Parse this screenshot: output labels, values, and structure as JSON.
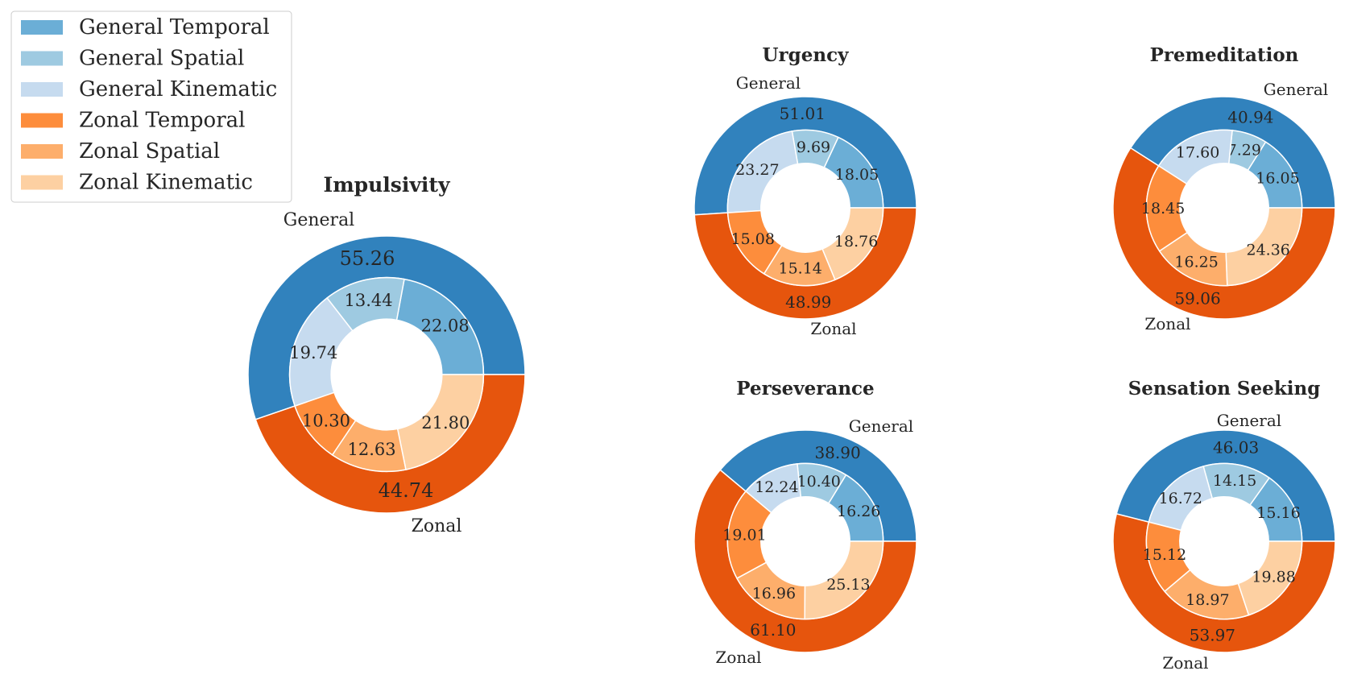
{
  "legend": {
    "entries": [
      {
        "label": "General Temporal",
        "color": "#6baed6"
      },
      {
        "label": "General Spatial",
        "color": "#9ecae1"
      },
      {
        "label": "General Kinematic",
        "color": "#c6dbef"
      },
      {
        "label": "Zonal Temporal",
        "color": "#fd8d3c"
      },
      {
        "label": "Zonal Spatial",
        "color": "#fdae6b"
      },
      {
        "label": "Zonal Kinematic",
        "color": "#fdd0a2"
      }
    ]
  },
  "colors": {
    "general_outer": "#3182bd",
    "zonal_outer": "#e6550d",
    "wedge_edge": "#ffffff"
  },
  "outer_labels": {
    "general": "General",
    "zonal": "Zonal"
  },
  "chart_data": [
    {
      "type": "pie",
      "title": "Impulsivity",
      "outer": {
        "categories": [
          "General",
          "Zonal"
        ],
        "values": [
          55.26,
          44.74
        ]
      },
      "inner": {
        "categories": [
          "General Temporal",
          "General Spatial",
          "General Kinematic",
          "Zonal Temporal",
          "Zonal Spatial",
          "Zonal Kinematic"
        ],
        "values": [
          22.08,
          13.44,
          19.74,
          10.3,
          12.63,
          21.8
        ]
      }
    },
    {
      "type": "pie",
      "title": "Urgency",
      "outer": {
        "categories": [
          "General",
          "Zonal"
        ],
        "values": [
          51.01,
          48.99
        ]
      },
      "inner": {
        "categories": [
          "General Temporal",
          "General Spatial",
          "General Kinematic",
          "Zonal Temporal",
          "Zonal Spatial",
          "Zonal Kinematic"
        ],
        "values": [
          18.05,
          9.69,
          23.27,
          15.08,
          15.14,
          18.76
        ]
      }
    },
    {
      "type": "pie",
      "title": "Premeditation",
      "outer": {
        "categories": [
          "General",
          "Zonal"
        ],
        "values": [
          40.94,
          59.06
        ]
      },
      "inner": {
        "categories": [
          "General Temporal",
          "General Spatial",
          "General Kinematic",
          "Zonal Temporal",
          "Zonal Spatial",
          "Zonal Kinematic"
        ],
        "values": [
          16.05,
          7.29,
          17.6,
          18.45,
          16.25,
          24.36
        ]
      }
    },
    {
      "type": "pie",
      "title": "Perseverance",
      "outer": {
        "categories": [
          "General",
          "Zonal"
        ],
        "values": [
          38.9,
          61.1
        ]
      },
      "inner": {
        "categories": [
          "General Temporal",
          "General Spatial",
          "General Kinematic",
          "Zonal Temporal",
          "Zonal Spatial",
          "Zonal Kinematic"
        ],
        "values": [
          16.26,
          10.4,
          12.24,
          19.01,
          16.96,
          25.13
        ]
      }
    },
    {
      "type": "pie",
      "title": "Sensation Seeking",
      "outer": {
        "categories": [
          "General",
          "Zonal"
        ],
        "values": [
          46.03,
          53.97
        ]
      },
      "inner": {
        "categories": [
          "General Temporal",
          "General Spatial",
          "General Kinematic",
          "Zonal Temporal",
          "Zonal Spatial",
          "Zonal Kinematic"
        ],
        "values": [
          15.16,
          14.15,
          16.72,
          15.12,
          18.97,
          19.88
        ]
      }
    }
  ]
}
